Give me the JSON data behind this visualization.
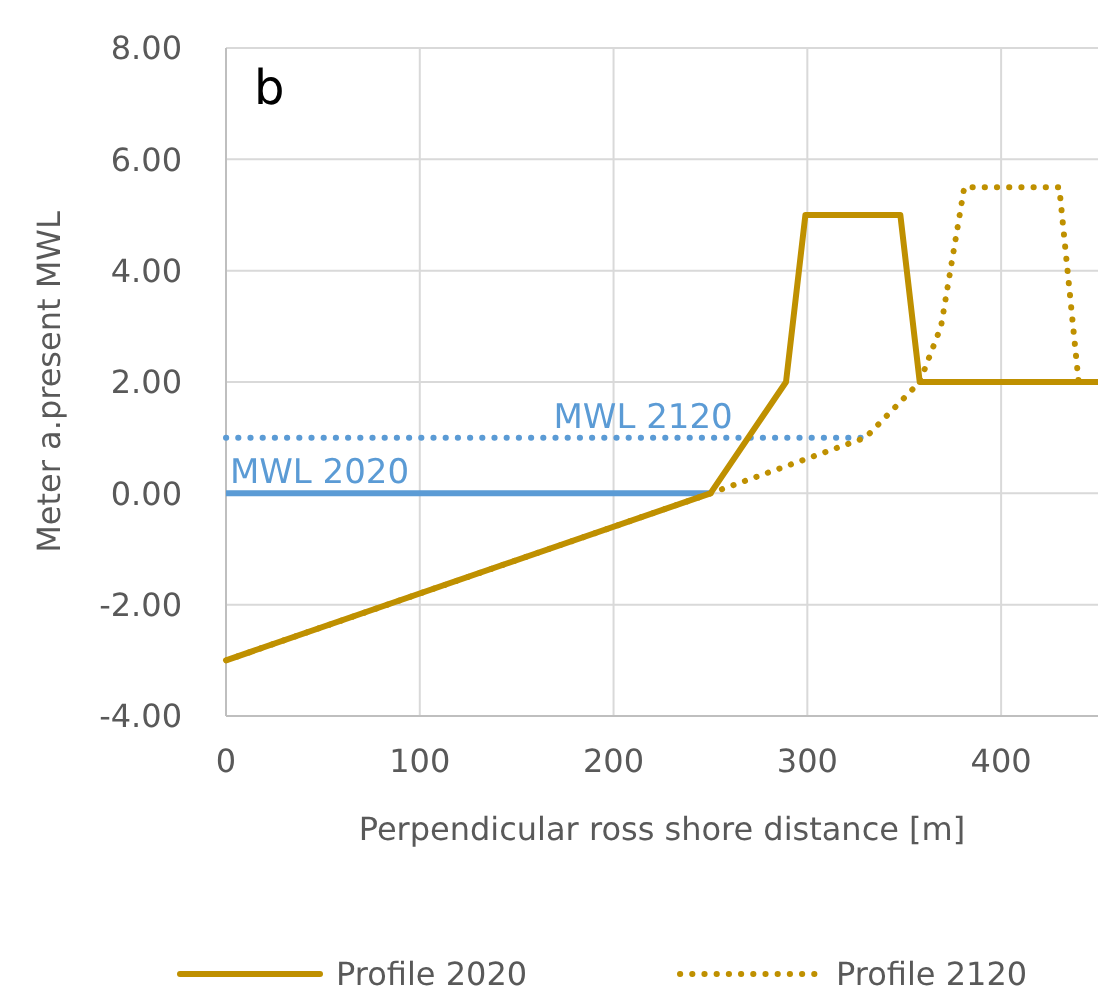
{
  "chart_data": {
    "type": "line",
    "title": "b",
    "xlabel": "Perpendicular ross shore distance [m]",
    "ylabel": "Meter a.present  MWL",
    "xlim": [
      0,
      450
    ],
    "xticks": [
      0,
      100,
      200,
      300,
      400
    ],
    "ylim": [
      -4,
      8
    ],
    "yticks": [
      {
        "value": -4,
        "label": "-4.00"
      },
      {
        "value": -2,
        "label": "-2.00"
      },
      {
        "value": 0,
        "label": "0.00"
      },
      {
        "value": 2,
        "label": "2.00"
      },
      {
        "value": 4,
        "label": "4.00"
      },
      {
        "value": 6,
        "label": "6.00"
      },
      {
        "value": 8,
        "label": "8.00"
      }
    ],
    "grid": true,
    "legend": "bottom",
    "series": [
      {
        "color": "#5b9bd5",
        "line_style": "solid",
        "x": [
          0,
          250
        ],
        "values": [
          0,
          0
        ]
      },
      {
        "color": "#5b9bd5",
        "line_style": "dotted",
        "x": [
          0,
          330
        ],
        "values": [
          1,
          1
        ]
      },
      {
        "name": "Profile 2020",
        "color": "#bf9000",
        "line_style": "solid",
        "x": [
          0,
          250,
          289,
          299,
          348,
          358,
          450
        ],
        "values": [
          -3,
          0,
          2,
          5,
          5,
          2,
          2
        ]
      },
      {
        "name": "Profile 2120",
        "color": "#bf9000",
        "line_style": "dotted",
        "x": [
          0,
          250,
          330,
          358,
          369,
          381,
          430,
          440
        ],
        "values": [
          -3,
          0,
          1,
          2,
          3,
          5.5,
          5.5,
          2
        ]
      }
    ],
    "annotations": [
      {
        "text": "MWL 2020",
        "x": 2,
        "y": 0
      },
      {
        "text": "MWL 2120",
        "x": 169,
        "y": 1
      }
    ]
  }
}
